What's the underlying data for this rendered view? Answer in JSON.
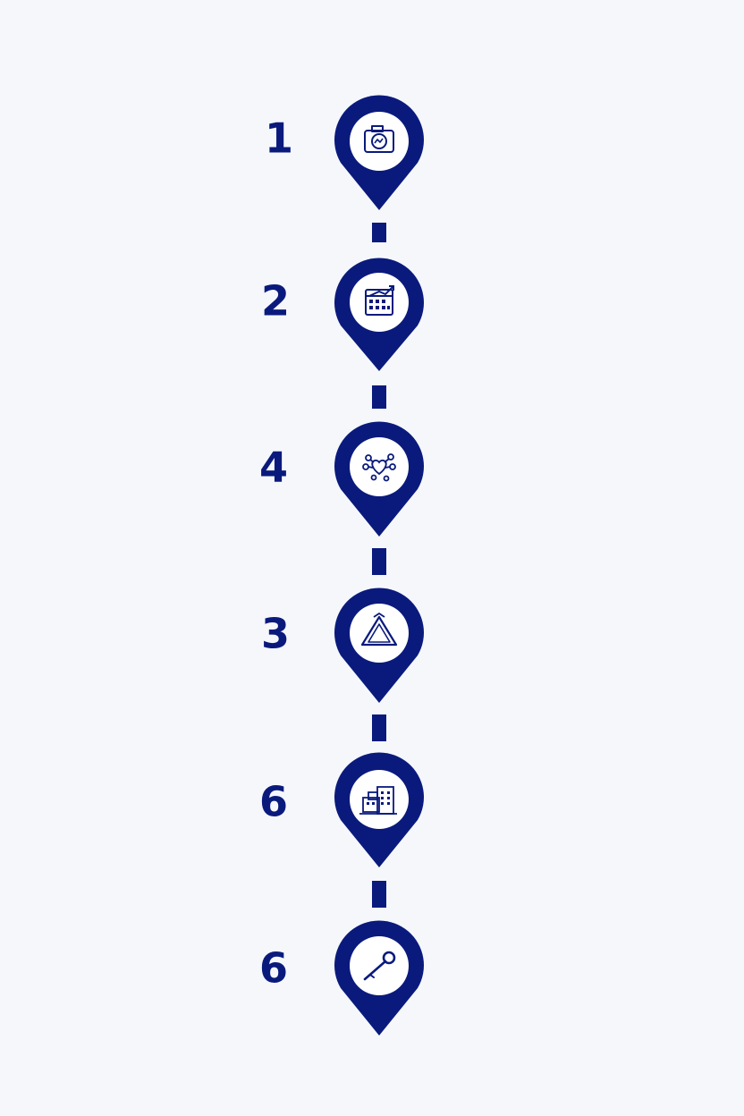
{
  "colors": {
    "background": "#f5f7fb",
    "primary": "#0a1a7c",
    "inner": "#ffffff"
  },
  "steps": [
    {
      "label": "1",
      "icon": "photo-camera-icon"
    },
    {
      "label": "2",
      "icon": "calendar-chart-icon"
    },
    {
      "label": "4",
      "icon": "network-heart-icon"
    },
    {
      "label": "3",
      "icon": "triangle-arrows-icon"
    },
    {
      "label": "6",
      "icon": "buildings-icon"
    },
    {
      "label": "6",
      "icon": "key-icon"
    }
  ]
}
